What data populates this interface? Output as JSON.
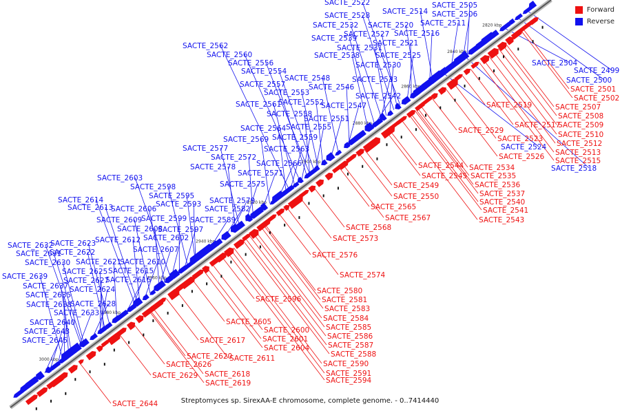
{
  "caption": "Streptomyces sp. SirexAA-E chromosome, complete genome. - 0..7414440",
  "legend": [
    {
      "label": "Forward",
      "color": "#ee1111"
    },
    {
      "label": "Reverse",
      "color": "#1111ee"
    }
  ],
  "colors": {
    "forward": "#ee1111",
    "reverse": "#1111ee",
    "axis": "#888888"
  },
  "ticks": [
    "2820 kbp",
    "2840 kbp",
    "2860 kbp",
    "2880 kbp",
    "2900 kbp",
    "2920 kbp",
    "2940 kbp",
    "2960 kbp",
    "2980 kbp",
    "3000 kbp"
  ],
  "reverse_genes": [
    "SACTE_2505",
    "SACTE_2522",
    "SACTE_2514",
    "SACTE_2506",
    "SACTE_2528",
    "SACTE_2532",
    "SACTE_2520",
    "SACTE_2511",
    "SACTE_2527",
    "SACTE_2516",
    "SACTE_2539",
    "SACTE_2521",
    "SACTE_2531",
    "SACTE_2525",
    "SACTE_2538",
    "SACTE_2530",
    "SACTE_2562",
    "SACTE_2560",
    "SACTE_2556",
    "SACTE_2554",
    "SACTE_2548",
    "SACTE_2533",
    "SACTE_2557",
    "SACTE_2546",
    "SACTE_2553",
    "SACTE_2542",
    "SACTE_2561",
    "SACTE_2552",
    "SACTE_2547",
    "SACTE_2558",
    "SACTE_2551",
    "SACTE_2564",
    "SACTE_2555",
    "SACTE_2569",
    "SACTE_2559",
    "SACTE_2577",
    "SACTE_2563",
    "SACTE_2572",
    "SACTE_2578",
    "SACTE_2566",
    "SACTE_2571",
    "SACTE_2603",
    "SACTE_2575",
    "SACTE_2598",
    "SACTE_2595",
    "SACTE_2614",
    "SACTE_2593",
    "SACTE_2579",
    "SACTE_2613",
    "SACTE_2606",
    "SACTE_2582",
    "SACTE_2599",
    "SACTE_2609",
    "SACTE_2589",
    "SACTE_2608",
    "SACTE_2597",
    "SACTE_2612",
    "SACTE_2602",
    "SACTE_2632",
    "SACTE_2623",
    "SACTE_2631",
    "SACTE_2622",
    "SACTE_2607",
    "SACTE_2630",
    "SACTE_2621",
    "SACTE_2610",
    "SACTE_2625",
    "SACTE_2615",
    "SACTE_2639",
    "SACTE_2627",
    "SACTE_2616",
    "SACTE_2637",
    "SACTE_2624",
    "SACTE_2635",
    "SACTE_2638",
    "SACTE_2628",
    "SACTE_2633",
    "SACTE_2640",
    "SACTE_2643",
    "SACTE_2645",
    "SACTE_2504",
    "SACTE_2499",
    "SACTE_2500",
    "SACTE_2524",
    "SACTE_2518"
  ],
  "forward_genes": [
    "SACTE_2501",
    "SACTE_2502",
    "SACTE_2507",
    "SACTE_2519",
    "SACTE_2508",
    "SACTE_2517",
    "SACTE_2509",
    "SACTE_2529",
    "SACTE_2510",
    "SACTE_2523",
    "SACTE_2512",
    "SACTE_2513",
    "SACTE_2526",
    "SACTE_2515",
    "SACTE_2544",
    "SACTE_2534",
    "SACTE_2545",
    "SACTE_2535",
    "SACTE_2549",
    "SACTE_2536",
    "SACTE_2537",
    "SACTE_2550",
    "SACTE_2540",
    "SACTE_2565",
    "SACTE_2541",
    "SACTE_2567",
    "SACTE_2543",
    "SACTE_2568",
    "SACTE_2573",
    "SACTE_2576",
    "SACTE_2574",
    "SACTE_2580",
    "SACTE_2596",
    "SACTE_2581",
    "SACTE_2583",
    "SACTE_2584",
    "SACTE_2605",
    "SACTE_2585",
    "SACTE_2600",
    "SACTE_2586",
    "SACTE_2601",
    "SACTE_2617",
    "SACTE_2587",
    "SACTE_2604",
    "SACTE_2588",
    "SACTE_2611",
    "SACTE_2620",
    "SACTE_2590",
    "SACTE_2626",
    "SACTE_2591",
    "SACTE_2618",
    "SACTE_2629",
    "SACTE_2594",
    "SACTE_2619",
    "SACTE_2644"
  ]
}
